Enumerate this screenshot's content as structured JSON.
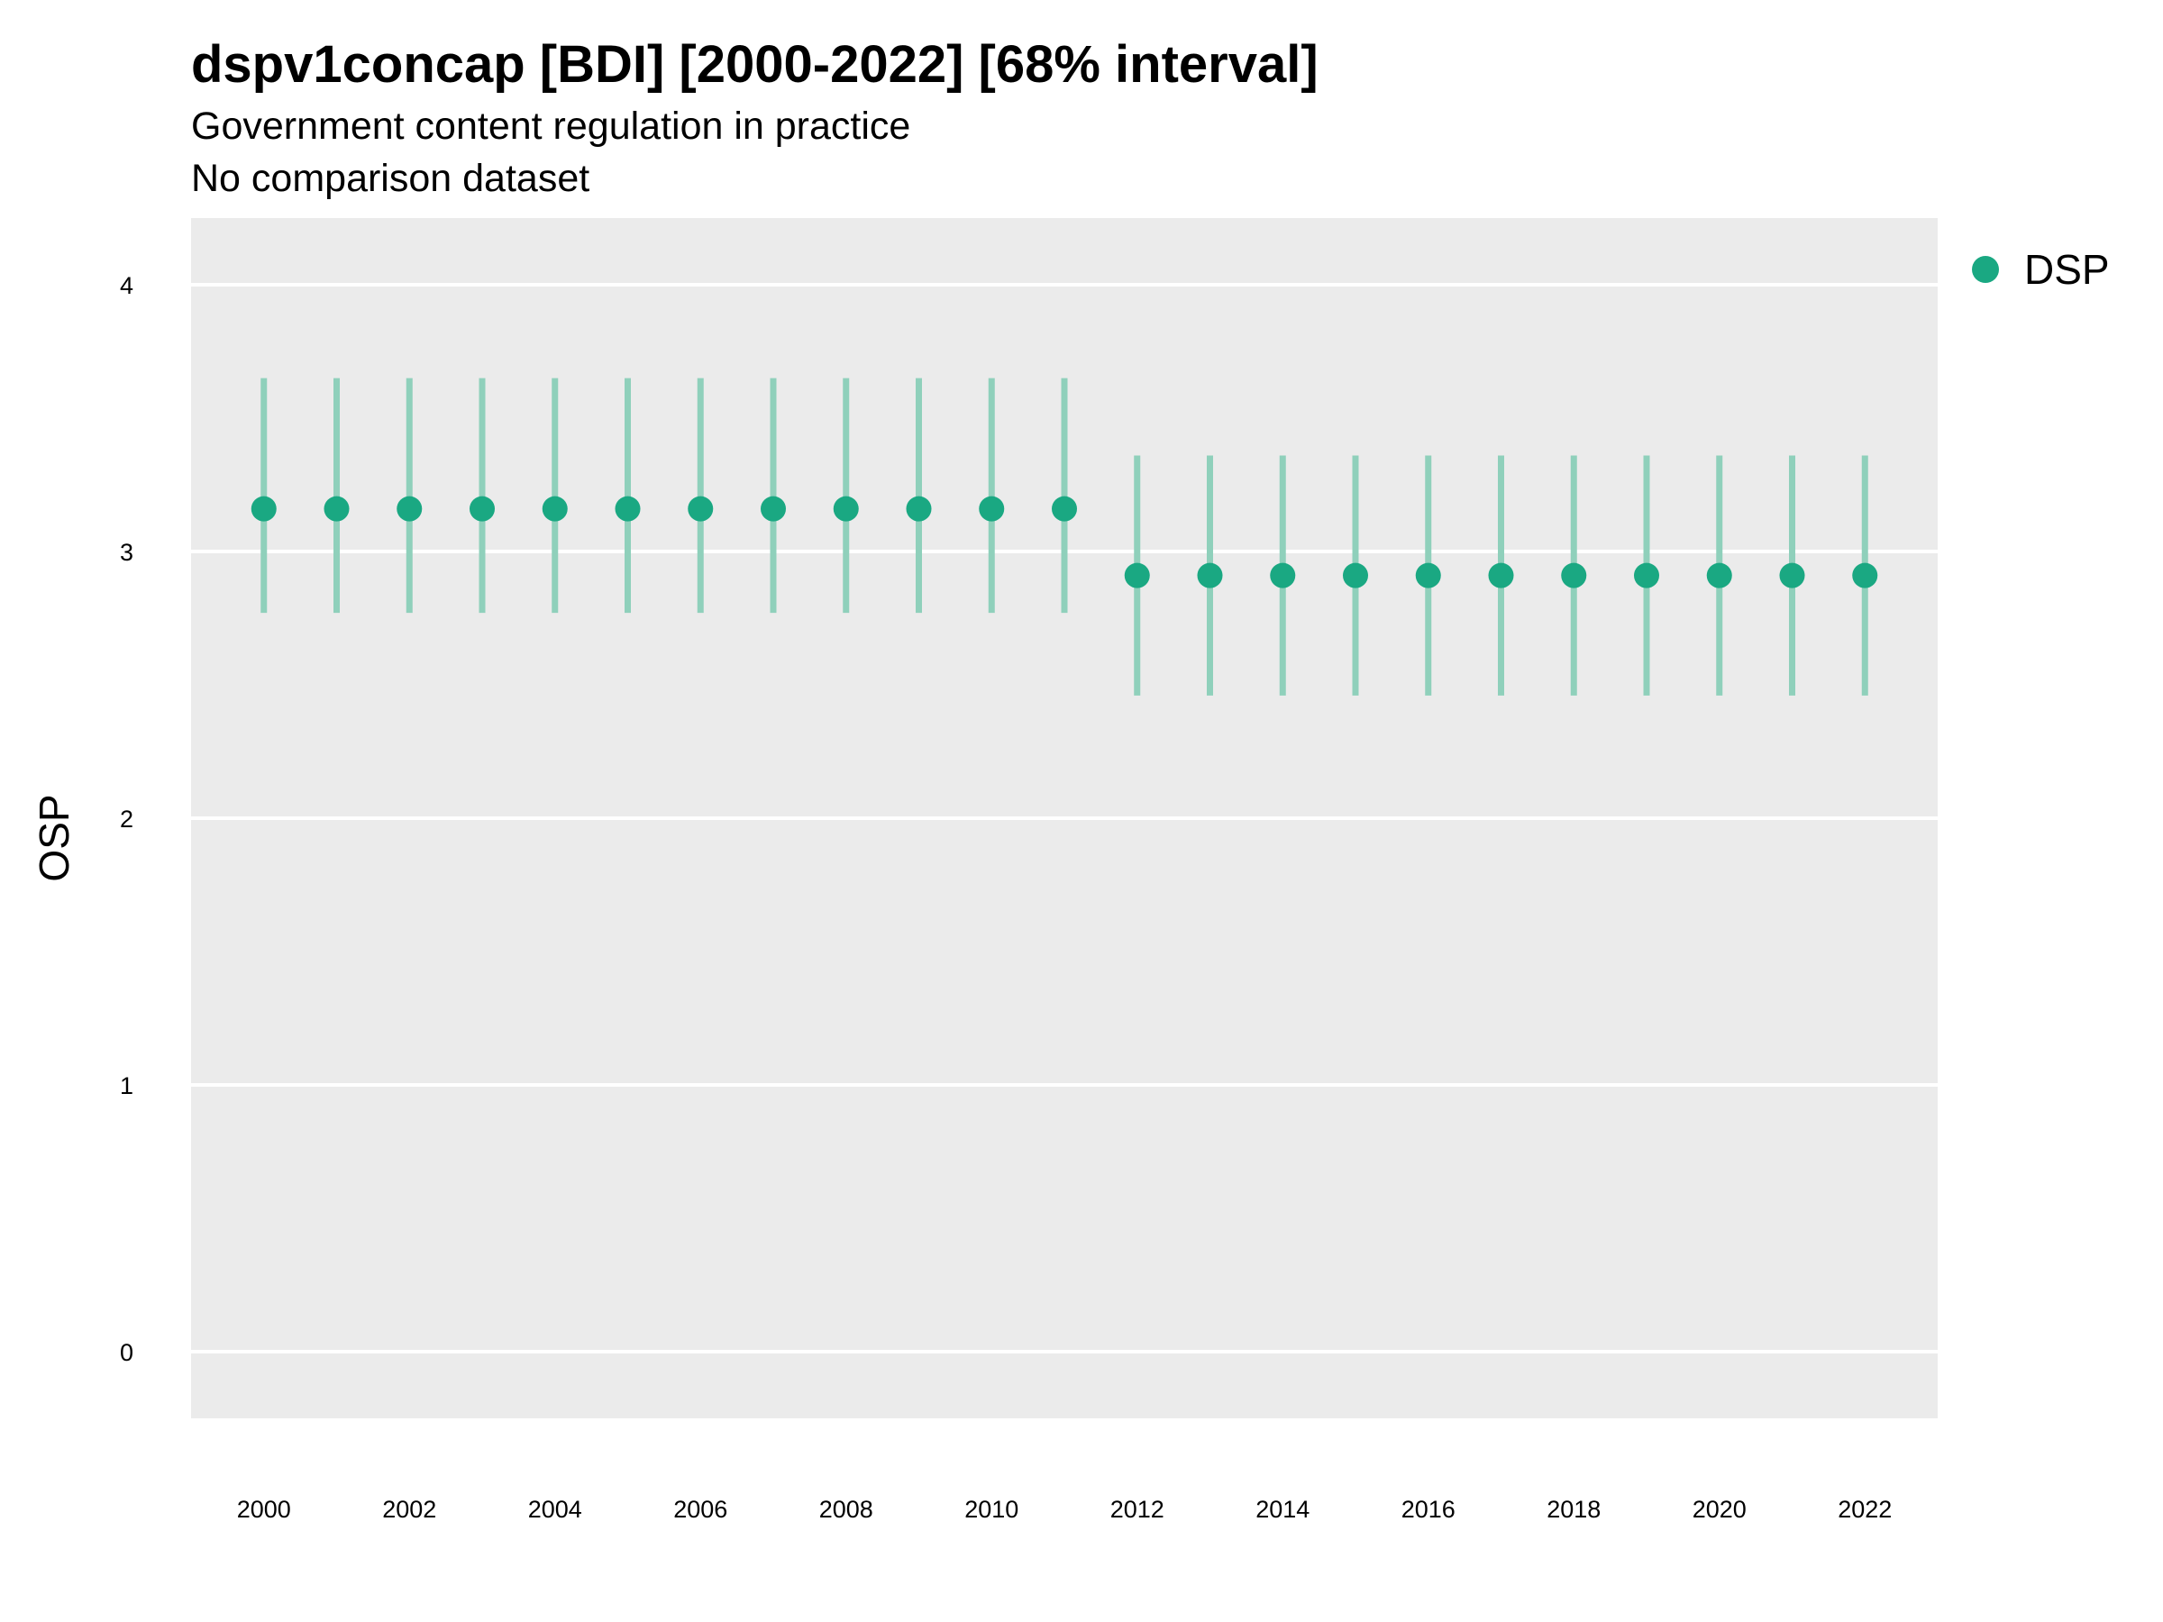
{
  "chart_data": {
    "type": "scatter",
    "title": "dspv1concap [BDI] [2000-2022] [68% interval]",
    "subtitle": "Government content regulation in practice",
    "subtitle2": "No comparison dataset",
    "xlabel": "",
    "ylabel": "OSP",
    "xlim": [
      1999,
      2023
    ],
    "ylim": [
      -0.25,
      4.25
    ],
    "x_ticks": [
      2000,
      2002,
      2004,
      2006,
      2008,
      2010,
      2012,
      2014,
      2016,
      2018,
      2020,
      2022
    ],
    "y_ticks": [
      0,
      1,
      2,
      3,
      4
    ],
    "grid": true,
    "legend_position": "right",
    "series": [
      {
        "name": "DSP",
        "color": "#1aa882",
        "x": [
          2000,
          2001,
          2002,
          2003,
          2004,
          2005,
          2006,
          2007,
          2008,
          2009,
          2010,
          2011,
          2012,
          2013,
          2014,
          2015,
          2016,
          2017,
          2018,
          2019,
          2020,
          2021,
          2022
        ],
        "y": [
          3.16,
          3.16,
          3.16,
          3.16,
          3.16,
          3.16,
          3.16,
          3.16,
          3.16,
          3.16,
          3.16,
          3.16,
          2.91,
          2.91,
          2.91,
          2.91,
          2.91,
          2.91,
          2.91,
          2.91,
          2.91,
          2.91,
          2.91
        ],
        "lower": [
          2.77,
          2.77,
          2.77,
          2.77,
          2.77,
          2.77,
          2.77,
          2.77,
          2.77,
          2.77,
          2.77,
          2.77,
          2.46,
          2.46,
          2.46,
          2.46,
          2.46,
          2.46,
          2.46,
          2.46,
          2.46,
          2.46,
          2.46
        ],
        "upper": [
          3.65,
          3.65,
          3.65,
          3.65,
          3.65,
          3.65,
          3.65,
          3.65,
          3.65,
          3.65,
          3.65,
          3.65,
          3.36,
          3.36,
          3.36,
          3.36,
          3.36,
          3.36,
          3.36,
          3.36,
          3.36,
          3.36,
          3.36
        ]
      }
    ]
  },
  "colors": {
    "panel_background": "#ebebeb",
    "gridline": "#ffffff",
    "point": "#1aa882",
    "interval": "#8fd0bb"
  }
}
